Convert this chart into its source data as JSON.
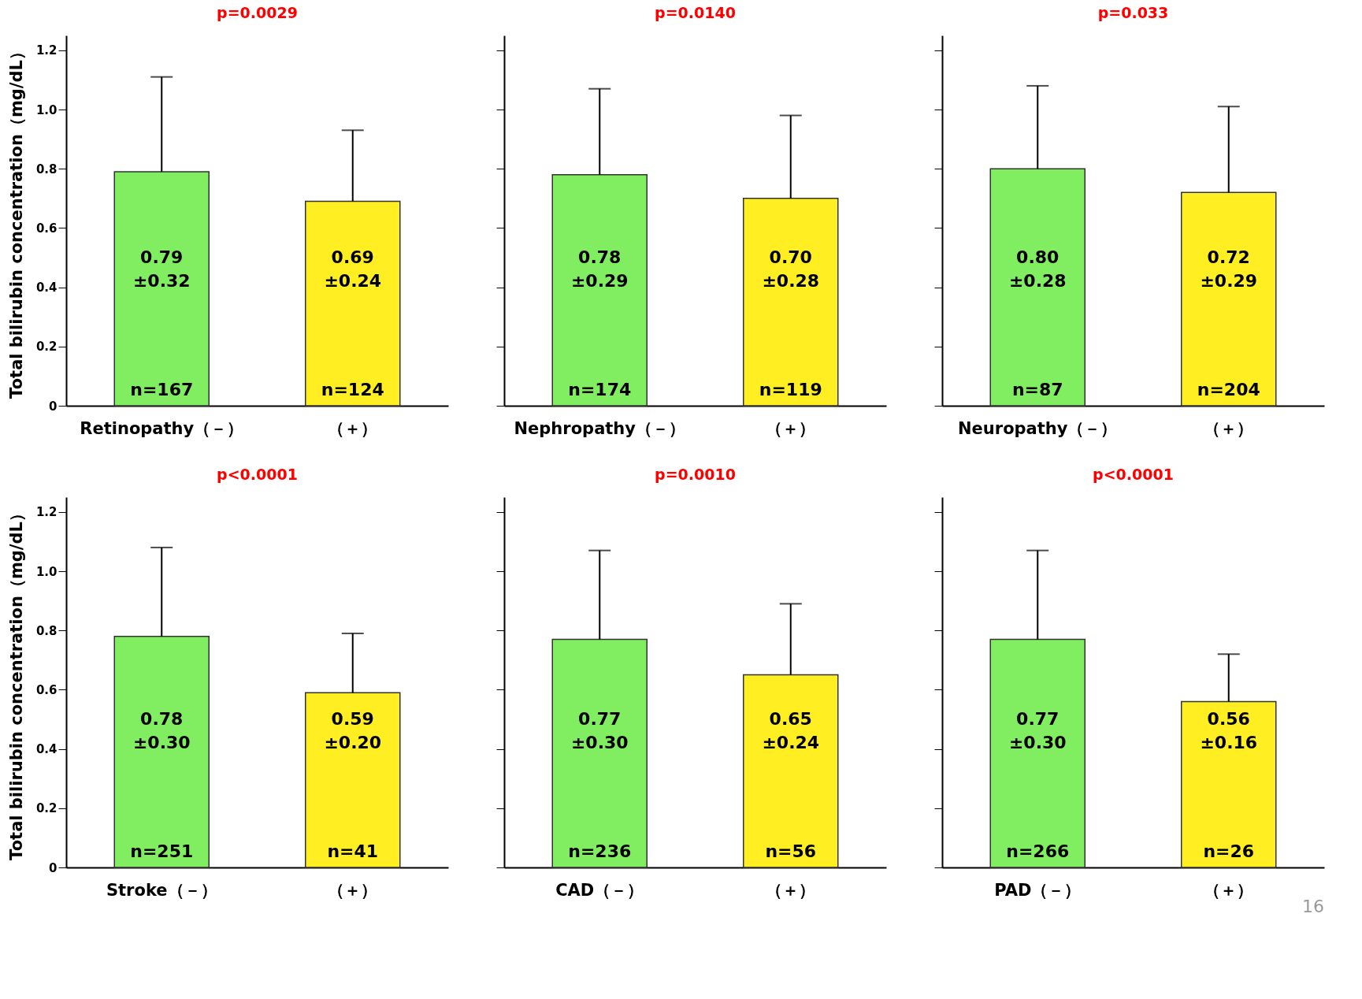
{
  "chart_data": [
    {
      "type": "bar",
      "title": "p=0.0029",
      "ylabel": "Total bilirubin concentration（mg/dL）",
      "categories": [
        "Retinopathy（－）",
        "（＋）"
      ],
      "values": [
        0.79,
        0.69
      ],
      "colors": [
        "#80ee60",
        "#ffee22"
      ],
      "errors": [
        [
          0.79,
          1.11
        ],
        [
          0.69,
          0.93
        ]
      ],
      "value_labels": [
        "0.79\n±0.32",
        "0.69\n±0.24"
      ],
      "annotations": [
        "n=167",
        "n=124"
      ],
      "ylim": [
        0,
        1.25
      ],
      "yticks": [
        0,
        0.2,
        0.4,
        0.6,
        0.8,
        {
          "value": 1,
          "label": "1.0"
        },
        1.2
      ]
    },
    {
      "type": "bar",
      "title": "p=0.0140",
      "categories": [
        "Nephropathy（－）",
        "（＋）"
      ],
      "values": [
        0.78,
        0.7
      ],
      "colors": [
        "#80ee60",
        "#ffee22"
      ],
      "errors": [
        [
          0.78,
          1.07
        ],
        [
          0.7,
          0.98
        ]
      ],
      "value_labels": [
        "0.78\n±0.29",
        "0.70\n±0.28"
      ],
      "annotations": [
        "n=174",
        "n=119"
      ],
      "ylim": [
        0,
        1.25
      ],
      "yticks": [
        0,
        0.2,
        0.4,
        0.6,
        0.8,
        1,
        1.2
      ],
      "tick_labels": "x"
    },
    {
      "type": "bar",
      "title": "p=0.033",
      "categories": [
        "Neuropathy（－）",
        "（＋）"
      ],
      "values": [
        0.8,
        0.72
      ],
      "colors": [
        "#80ee60",
        "#ffee22"
      ],
      "errors": [
        [
          0.8,
          1.08
        ],
        [
          0.72,
          1.01
        ]
      ],
      "value_labels": [
        "0.80\n±0.28",
        "0.72\n±0.29"
      ],
      "annotations": [
        "n=87",
        "n=204"
      ],
      "ylim": [
        0,
        1.25
      ],
      "yticks": [
        0,
        0.2,
        0.4,
        0.6,
        0.8,
        1,
        1.2
      ],
      "tick_labels": "x"
    },
    {
      "type": "bar",
      "title": "p<0.0001",
      "ylabel": "Total bilirubin concentration（mg/dL）",
      "categories": [
        "Stroke（－）",
        "（＋）"
      ],
      "values": [
        0.78,
        0.59
      ],
      "colors": [
        "#80ee60",
        "#ffee22"
      ],
      "errors": [
        [
          0.78,
          1.08
        ],
        [
          0.59,
          0.79
        ]
      ],
      "value_labels": [
        "0.78\n±0.30",
        "0.59\n±0.20"
      ],
      "annotations": [
        "n=251",
        "n=41"
      ],
      "ylim": [
        0,
        1.25
      ],
      "yticks": [
        0,
        0.2,
        0.4,
        0.6,
        0.8,
        {
          "value": 1,
          "label": "1.0"
        },
        1.2
      ]
    },
    {
      "type": "bar",
      "title": "p=0.0010",
      "categories": [
        "CAD（－）",
        "（＋）"
      ],
      "values": [
        0.77,
        0.65
      ],
      "colors": [
        "#80ee60",
        "#ffee22"
      ],
      "errors": [
        [
          0.77,
          1.07
        ],
        [
          0.65,
          0.89
        ]
      ],
      "value_labels": [
        "0.77\n±0.30",
        "0.65\n±0.24"
      ],
      "annotations": [
        "n=236",
        "n=56"
      ],
      "ylim": [
        0,
        1.25
      ],
      "yticks": [
        0,
        0.2,
        0.4,
        0.6,
        0.8,
        1,
        1.2
      ],
      "tick_labels": "x"
    },
    {
      "type": "bar",
      "title": "p<0.0001",
      "categories": [
        "PAD（－）",
        "（＋）"
      ],
      "values": [
        0.77,
        0.56
      ],
      "colors": [
        "#80ee60",
        "#ffee22"
      ],
      "errors": [
        [
          0.77,
          1.07
        ],
        [
          0.56,
          0.72
        ]
      ],
      "value_labels": [
        "0.77\n±0.30",
        "0.56\n±0.16"
      ],
      "annotations": [
        "n=266",
        "n=26",
        "16"
      ],
      "ylim": [
        0,
        1.25
      ],
      "yticks": [
        0,
        0.2,
        0.4,
        0.6,
        0.8,
        1,
        1.2
      ],
      "tick_labels": "x"
    }
  ]
}
